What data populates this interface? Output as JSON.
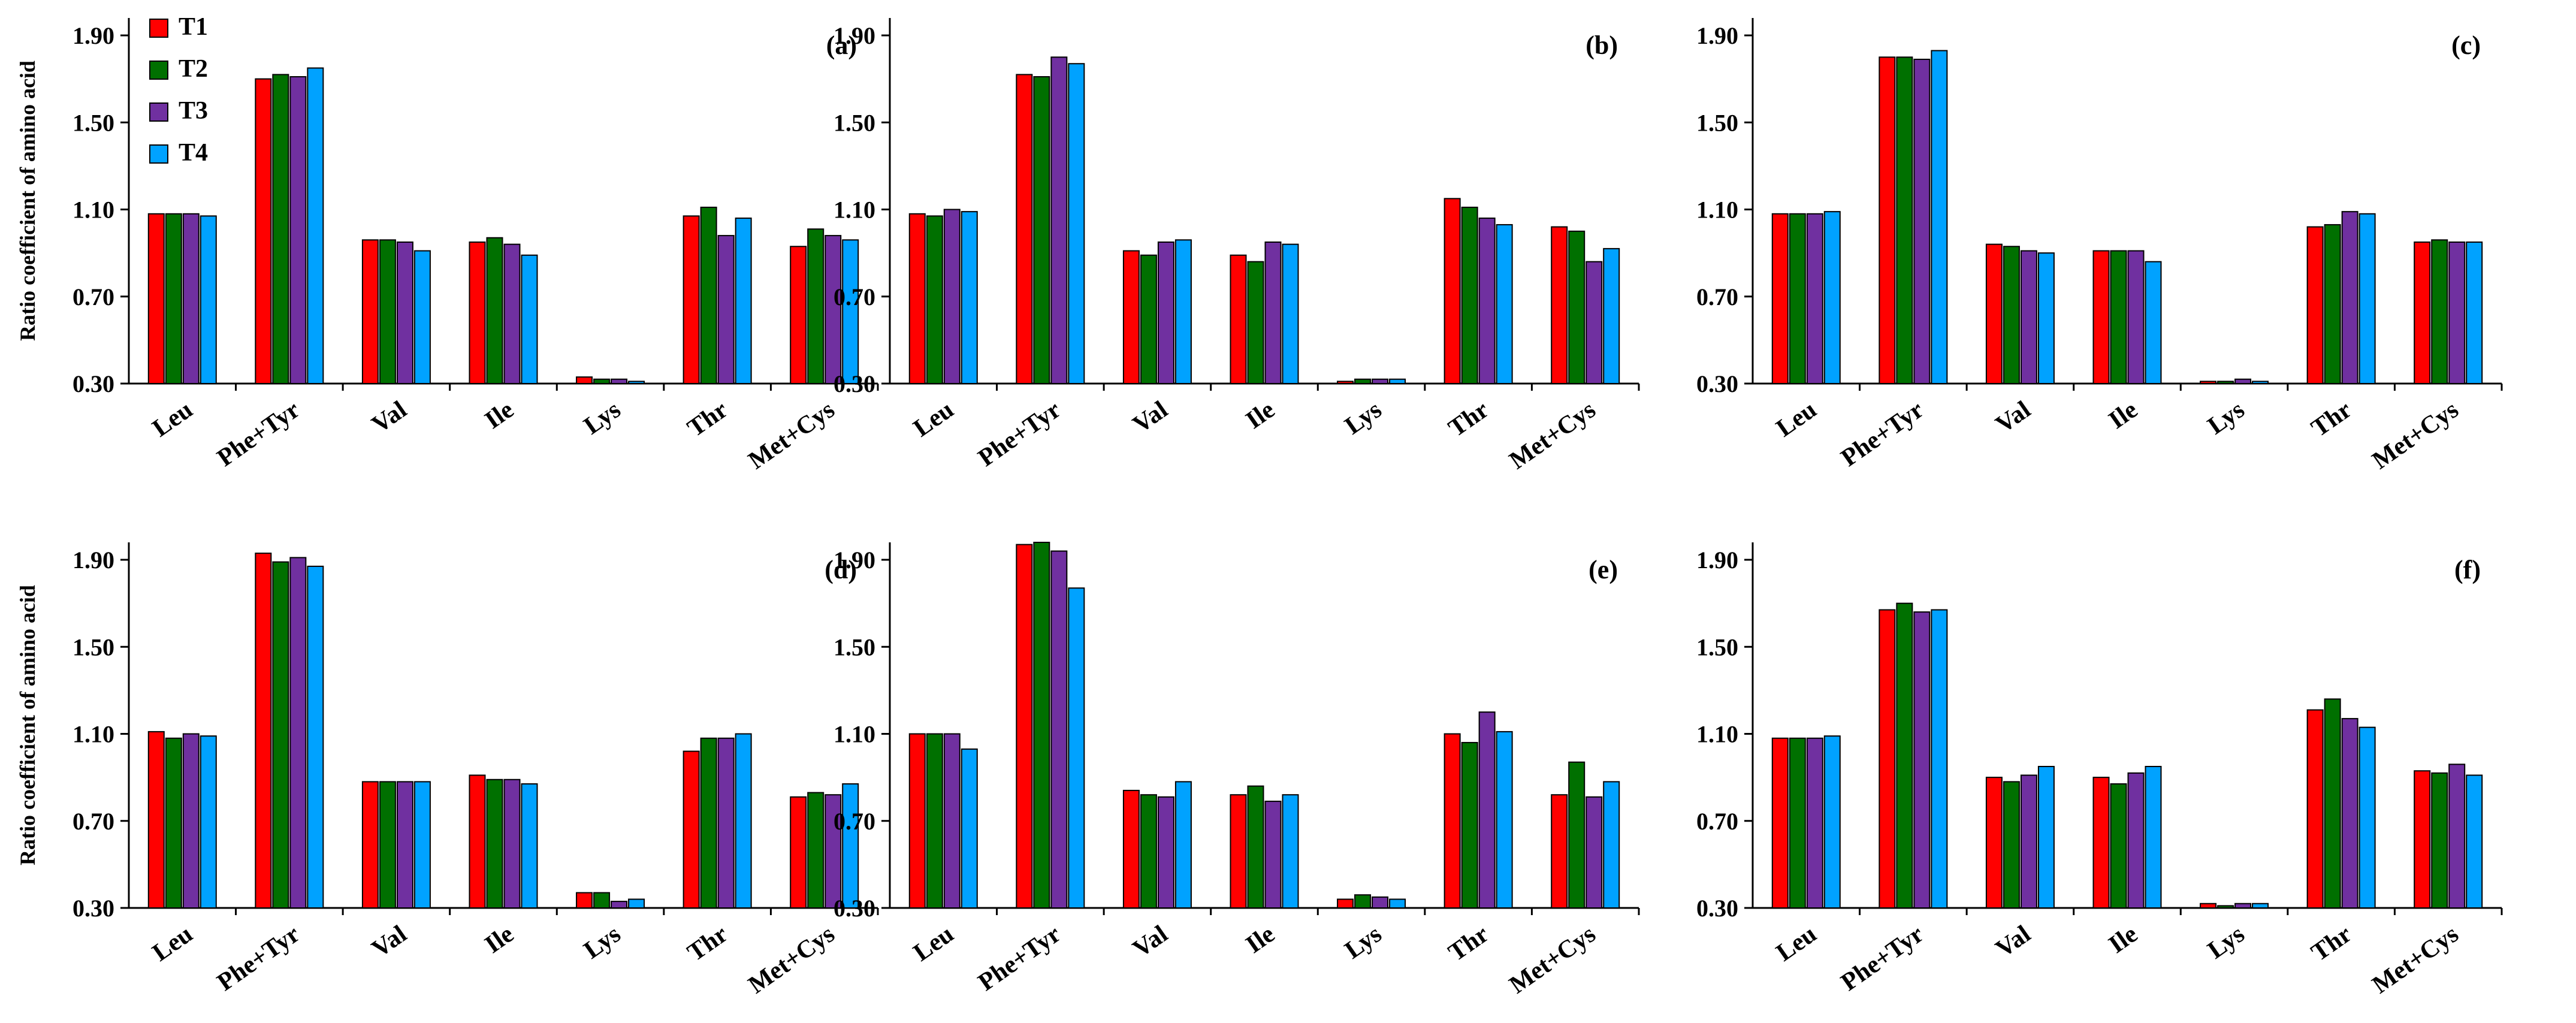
{
  "figure": {
    "ylabel": "Ratio coefficient of amino acid"
  },
  "legend": {
    "entries": [
      "T1",
      "T2",
      "T3",
      "T4"
    ],
    "colors": [
      "#ff0000",
      "#007000",
      "#7030a0",
      "#00a2ff"
    ]
  },
  "chart_data": [
    {
      "type": "bar",
      "panel": "(a)",
      "categories": [
        "Leu",
        "Phe+Tyr",
        "Val",
        "Ile",
        "Lys",
        "Thr",
        "Met+Cys"
      ],
      "yticks": [
        "0.30",
        "0.70",
        "1.10",
        "1.50",
        "1.90"
      ],
      "ylim": [
        0.3,
        1.98
      ],
      "series": [
        {
          "name": "T1",
          "values": [
            1.08,
            1.7,
            0.96,
            0.95,
            0.33,
            1.07,
            0.93
          ]
        },
        {
          "name": "T2",
          "values": [
            1.08,
            1.72,
            0.96,
            0.97,
            0.32,
            1.11,
            1.01
          ]
        },
        {
          "name": "T3",
          "values": [
            1.08,
            1.71,
            0.95,
            0.94,
            0.32,
            0.98,
            0.98
          ]
        },
        {
          "name": "T4",
          "values": [
            1.07,
            1.75,
            0.91,
            0.89,
            0.31,
            1.06,
            0.96
          ]
        }
      ]
    },
    {
      "type": "bar",
      "panel": "(b)",
      "categories": [
        "Leu",
        "Phe+Tyr",
        "Val",
        "Ile",
        "Lys",
        "Thr",
        "Met+Cys"
      ],
      "yticks": [
        "0.30",
        "0.70",
        "1.10",
        "1.50",
        "1.90"
      ],
      "ylim": [
        0.3,
        1.98
      ],
      "series": [
        {
          "name": "T1",
          "values": [
            1.08,
            1.72,
            0.91,
            0.89,
            0.31,
            1.15,
            1.02
          ]
        },
        {
          "name": "T2",
          "values": [
            1.07,
            1.71,
            0.89,
            0.86,
            0.32,
            1.11,
            1.0
          ]
        },
        {
          "name": "T3",
          "values": [
            1.1,
            1.8,
            0.95,
            0.95,
            0.32,
            1.06,
            0.86
          ]
        },
        {
          "name": "T4",
          "values": [
            1.09,
            1.77,
            0.96,
            0.94,
            0.32,
            1.03,
            0.92
          ]
        }
      ]
    },
    {
      "type": "bar",
      "panel": "(c)",
      "categories": [
        "Leu",
        "Phe+Tyr",
        "Val",
        "Ile",
        "Lys",
        "Thr",
        "Met+Cys"
      ],
      "yticks": [
        "0.30",
        "0.70",
        "1.10",
        "1.50",
        "1.90"
      ],
      "ylim": [
        0.3,
        1.98
      ],
      "series": [
        {
          "name": "T1",
          "values": [
            1.08,
            1.8,
            0.94,
            0.91,
            0.31,
            1.02,
            0.95
          ]
        },
        {
          "name": "T2",
          "values": [
            1.08,
            1.8,
            0.93,
            0.91,
            0.31,
            1.03,
            0.96
          ]
        },
        {
          "name": "T3",
          "values": [
            1.08,
            1.79,
            0.91,
            0.91,
            0.32,
            1.09,
            0.95
          ]
        },
        {
          "name": "T4",
          "values": [
            1.09,
            1.83,
            0.9,
            0.86,
            0.31,
            1.08,
            0.95
          ]
        }
      ]
    },
    {
      "type": "bar",
      "panel": "(d)",
      "categories": [
        "Leu",
        "Phe+Tyr",
        "Val",
        "Ile",
        "Lys",
        "Thr",
        "Met+Cys"
      ],
      "yticks": [
        "0.30",
        "0.70",
        "1.10",
        "1.50",
        "1.90"
      ],
      "ylim": [
        0.3,
        1.98
      ],
      "series": [
        {
          "name": "T1",
          "values": [
            1.11,
            1.93,
            0.88,
            0.91,
            0.37,
            1.02,
            0.81
          ]
        },
        {
          "name": "T2",
          "values": [
            1.08,
            1.89,
            0.88,
            0.89,
            0.37,
            1.08,
            0.83
          ]
        },
        {
          "name": "T3",
          "values": [
            1.1,
            1.91,
            0.88,
            0.89,
            0.33,
            1.08,
            0.82
          ]
        },
        {
          "name": "T4",
          "values": [
            1.09,
            1.87,
            0.88,
            0.87,
            0.34,
            1.1,
            0.87
          ]
        }
      ]
    },
    {
      "type": "bar",
      "panel": "(e)",
      "categories": [
        "Leu",
        "Phe+Tyr",
        "Val",
        "Ile",
        "Lys",
        "Thr",
        "Met+Cys"
      ],
      "yticks": [
        "0.30",
        "0.70",
        "1.10",
        "1.50",
        "1.90"
      ],
      "ylim": [
        0.3,
        1.98
      ],
      "series": [
        {
          "name": "T1",
          "values": [
            1.1,
            1.97,
            0.84,
            0.82,
            0.34,
            1.1,
            0.82
          ]
        },
        {
          "name": "T2",
          "values": [
            1.1,
            1.98,
            0.82,
            0.86,
            0.36,
            1.06,
            0.97
          ]
        },
        {
          "name": "T3",
          "values": [
            1.1,
            1.94,
            0.81,
            0.79,
            0.35,
            1.2,
            0.81
          ]
        },
        {
          "name": "T4",
          "values": [
            1.03,
            1.77,
            0.88,
            0.82,
            0.34,
            1.11,
            0.88
          ]
        }
      ]
    },
    {
      "type": "bar",
      "panel": "(f)",
      "categories": [
        "Leu",
        "Phe+Tyr",
        "Val",
        "Ile",
        "Lys",
        "Thr",
        "Met+Cys"
      ],
      "yticks": [
        "0.30",
        "0.70",
        "1.10",
        "1.50",
        "1.90"
      ],
      "ylim": [
        0.3,
        1.98
      ],
      "series": [
        {
          "name": "T1",
          "values": [
            1.08,
            1.67,
            0.9,
            0.9,
            0.32,
            1.21,
            0.93
          ]
        },
        {
          "name": "T2",
          "values": [
            1.08,
            1.7,
            0.88,
            0.87,
            0.31,
            1.26,
            0.92
          ]
        },
        {
          "name": "T3",
          "values": [
            1.08,
            1.66,
            0.91,
            0.92,
            0.32,
            1.17,
            0.96
          ]
        },
        {
          "name": "T4",
          "values": [
            1.09,
            1.67,
            0.95,
            0.95,
            0.32,
            1.13,
            0.91
          ]
        }
      ]
    }
  ]
}
